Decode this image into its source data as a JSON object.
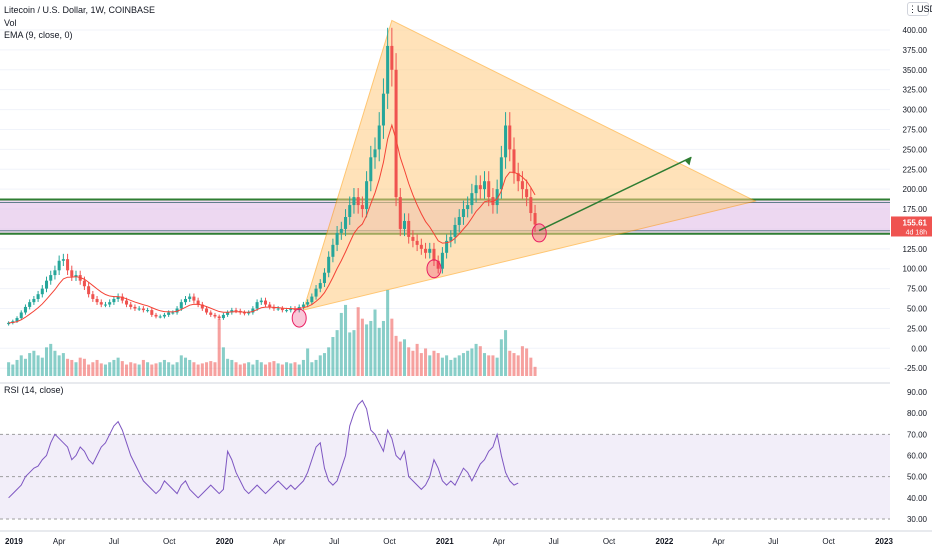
{
  "header": {
    "title": "Litecoin / U.S. Dollar, 1W, COINBASE",
    "vol_label": "Vol",
    "ema_label": "EMA (9, close, 0)",
    "currency_button": "USD"
  },
  "rsi_panel": {
    "label": "RSI (14, close)"
  },
  "colors": {
    "up": "#26a69a",
    "down": "#ef5350",
    "ema": "#f44336",
    "rsi": "#7e57c2",
    "zone": "#e1bee7",
    "triangle": "#ffcc80",
    "support": "#2e7d32",
    "arrow": "#2e7d32"
  },
  "chart_data": [
    {
      "type": "candlestick",
      "title": "Litecoin / U.S. Dollar, 1W, COINBASE",
      "ylim": [
        -37,
        420
      ],
      "y_ticks": [
        400,
        375,
        350,
        325,
        300,
        275,
        250,
        225,
        200,
        175,
        150,
        125,
        100,
        75,
        50,
        25,
        0,
        -25
      ],
      "y_tick_labels": [
        "400.00",
        "375.00",
        "350.00",
        "325.00",
        "300.00",
        "275.00",
        "250.00",
        "225.00",
        "200.00",
        "175.00",
        "150.00",
        "125.00",
        "100.00",
        "75.00",
        "50.00",
        "25.00",
        "0.00",
        "-25.00"
      ],
      "x_ticks": [
        "2019",
        "Apr",
        "Jul",
        "Oct",
        "2020",
        "Apr",
        "Jul",
        "Oct",
        "2021",
        "Apr",
        "Jul",
        "Oct",
        "2022",
        "Apr",
        "Jul",
        "Oct",
        "2023"
      ],
      "x_tick_dates": [
        "2019-01-01",
        "2019-04-01",
        "2019-07-01",
        "2019-10-01",
        "2020-01-01",
        "2020-04-01",
        "2020-07-01",
        "2020-10-01",
        "2021-01-01",
        "2021-04-01",
        "2021-07-01",
        "2021-10-01",
        "2022-01-01",
        "2022-04-01",
        "2022-07-01",
        "2022-10-01",
        "2023-01-01"
      ],
      "current_price": "155.61",
      "countdown": "4d 18h",
      "closes": [
        32,
        34,
        38,
        45,
        52,
        58,
        62,
        68,
        75,
        85,
        92,
        98,
        110,
        112,
        98,
        90,
        92,
        85,
        78,
        68,
        62,
        58,
        55,
        55,
        58,
        62,
        65,
        60,
        55,
        52,
        50,
        50,
        48,
        48,
        42,
        40,
        40,
        42,
        45,
        45,
        50,
        58,
        62,
        65,
        60,
        55,
        50,
        45,
        42,
        40,
        38,
        42,
        45,
        48,
        47,
        45,
        44,
        45,
        50,
        58,
        60,
        55,
        52,
        50,
        50,
        48,
        48,
        50,
        48,
        52,
        55,
        58,
        65,
        75,
        82,
        95,
        115,
        130,
        145,
        150,
        165,
        180,
        190,
        180,
        175,
        210,
        240,
        250,
        280,
        320,
        380,
        350,
        190,
        150,
        160,
        140,
        135,
        130,
        125,
        120,
        125,
        110,
        100,
        120,
        135,
        140,
        155,
        165,
        175,
        180,
        195,
        205,
        200,
        210,
        190,
        180,
        200,
        240,
        280,
        250,
        220,
        210,
        200,
        190,
        170,
        155.61
      ],
      "volumes": [
        12,
        10,
        14,
        18,
        15,
        20,
        22,
        18,
        16,
        25,
        28,
        22,
        18,
        20,
        15,
        14,
        12,
        16,
        15,
        10,
        12,
        14,
        11,
        10,
        12,
        14,
        16,
        13,
        10,
        12,
        11,
        10,
        14,
        12,
        10,
        11,
        12,
        14,
        12,
        10,
        12,
        18,
        16,
        14,
        12,
        10,
        11,
        12,
        13,
        12,
        50,
        25,
        15,
        14,
        12,
        10,
        11,
        12,
        10,
        14,
        12,
        10,
        12,
        13,
        11,
        10,
        12,
        11,
        12,
        10,
        14,
        24,
        12,
        14,
        18,
        20,
        25,
        34,
        40,
        55,
        62,
        38,
        40,
        60,
        50,
        45,
        48,
        58,
        42,
        48,
        75,
        50,
        35,
        30,
        32,
        25,
        22,
        28,
        20,
        24,
        18,
        22,
        20,
        16,
        18,
        14,
        16,
        18,
        20,
        22,
        24,
        28,
        26,
        20,
        18,
        18,
        16,
        32,
        40,
        22,
        20,
        18,
        26,
        24,
        16,
        8
      ]
    },
    {
      "type": "line",
      "title": "RSI (14, close)",
      "ylim": [
        28,
        92
      ],
      "y_ticks": [
        90,
        80,
        70,
        60,
        50,
        40,
        30
      ],
      "y_tick_labels": [
        "90.00",
        "80.00",
        "70.00",
        "60.00",
        "50.00",
        "40.00",
        "30.00"
      ],
      "overbought": 70,
      "oversold": 30,
      "series": [
        {
          "values": [
            40,
            42,
            44,
            46,
            50,
            52,
            54,
            55,
            58,
            60,
            66,
            70,
            68,
            66,
            64,
            58,
            60,
            64,
            62,
            58,
            56,
            60,
            64,
            66,
            70,
            74,
            76,
            72,
            66,
            60,
            56,
            52,
            48,
            46,
            44,
            42,
            44,
            48,
            46,
            44,
            42,
            46,
            48,
            44,
            42,
            40,
            42,
            44,
            46,
            44,
            42,
            44,
            62,
            58,
            52,
            48,
            44,
            42,
            44,
            46,
            44,
            42,
            44,
            46,
            48,
            46,
            44,
            46,
            44,
            46,
            48,
            52,
            58,
            64,
            66,
            54,
            48,
            46,
            48,
            54,
            60,
            74,
            80,
            84,
            86,
            82,
            72,
            70,
            66,
            62,
            72,
            68,
            60,
            58,
            62,
            50,
            48,
            46,
            44,
            46,
            50,
            58,
            54,
            48,
            46,
            48,
            46,
            50,
            54,
            52,
            48,
            52,
            56,
            58,
            62,
            64,
            70,
            60,
            52,
            48,
            46,
            47
          ]
        }
      ]
    }
  ]
}
